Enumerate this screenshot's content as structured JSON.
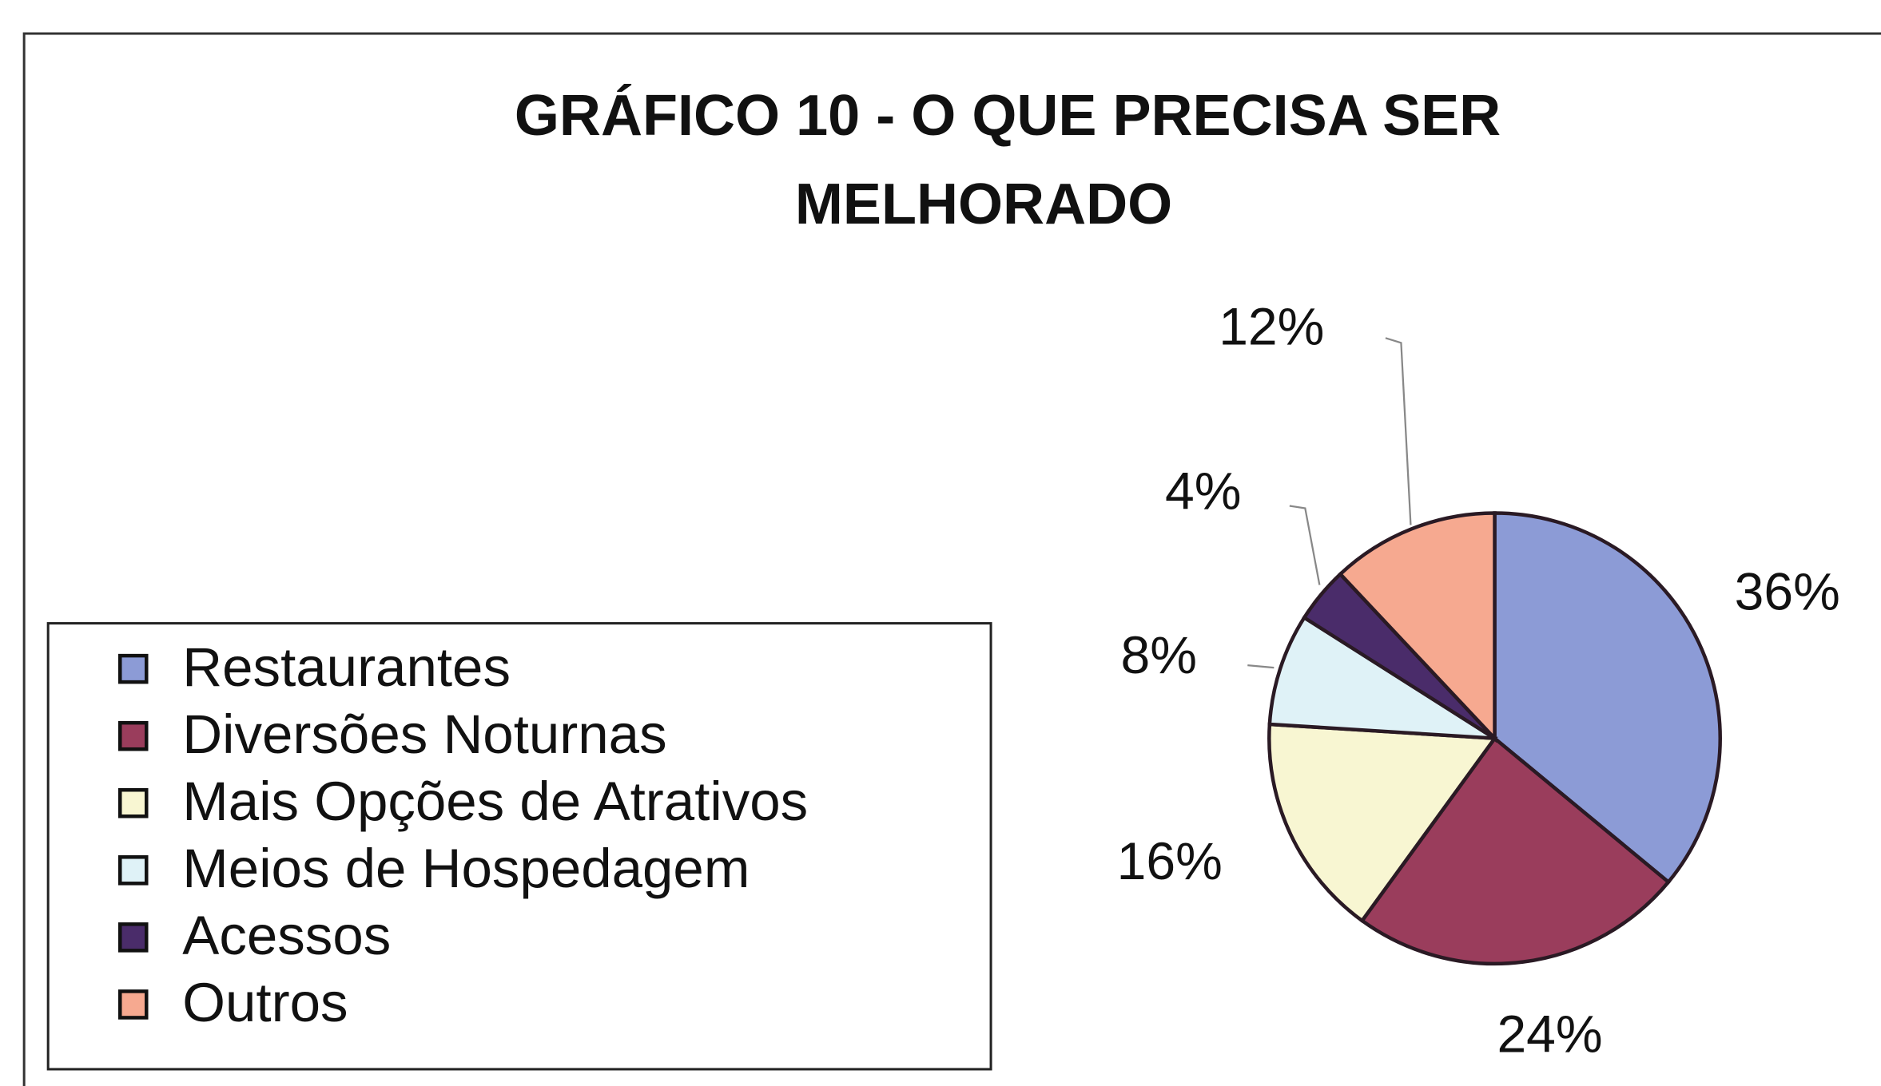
{
  "chart_data": {
    "type": "pie",
    "title": [
      "GRÁFICO 10 - O QUE PRECISA SER",
      "MELHORADO"
    ],
    "categories": [
      "Restaurantes",
      "Diversões Noturnas",
      "Mais Opções de Atrativos",
      "Meios de Hospedagem",
      "Acessos",
      "Outros"
    ],
    "values": [
      36,
      24,
      16,
      8,
      4,
      12
    ],
    "value_labels": [
      "36%",
      "24%",
      "16%",
      "8%",
      "4%",
      "12%"
    ],
    "colors": [
      "#8c9bd6",
      "#9a3d5c",
      "#f8f6d2",
      "#dff2f7",
      "#4a2c6a",
      "#f6a990"
    ],
    "legend": "left"
  }
}
